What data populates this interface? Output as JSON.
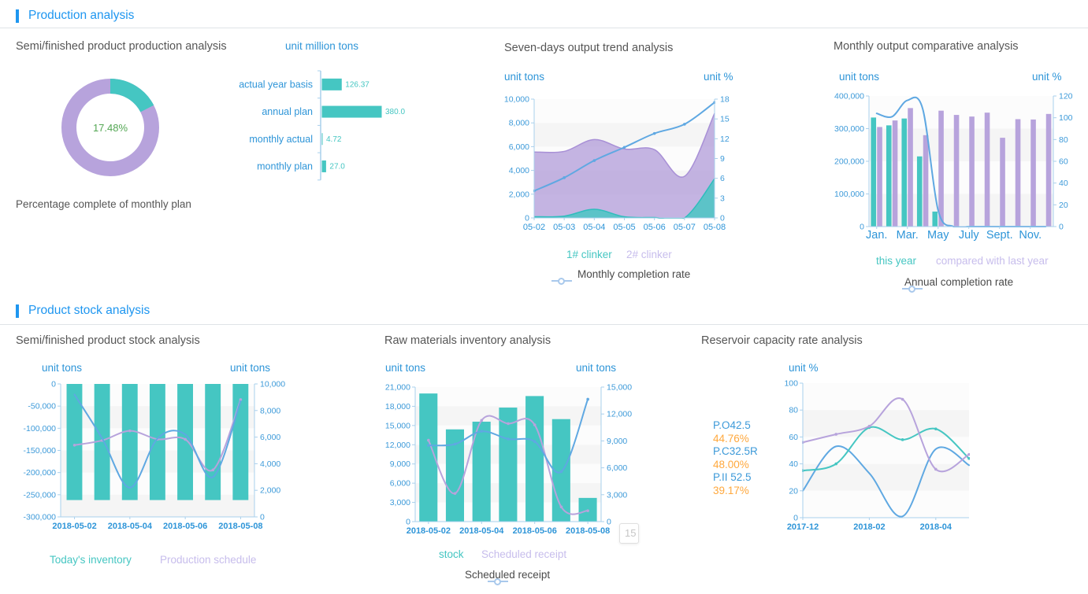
{
  "sections": {
    "production": {
      "title": "Production analysis"
    },
    "stock": {
      "title": "Product stock analysis"
    }
  },
  "panels": {
    "semi_production": {
      "title": "Semi/finished product production analysis",
      "unit": "unit million tons",
      "caption": "Percentage complete of monthly plan",
      "donut_center_label": "17.48%"
    },
    "seven_days": {
      "title": "Seven-days output trend analysis",
      "unit_left": "unit tons",
      "unit_right": "unit %",
      "legend": {
        "area1": "1# clinker",
        "area2": "2# clinker",
        "line": "Monthly completion rate"
      }
    },
    "monthly": {
      "title": "Monthly output comparative analysis",
      "unit_left": "unit tons",
      "unit_right": "unit %",
      "legend": {
        "bar1": "this year",
        "bar2": "compared with last year",
        "line": "Annual completion rate"
      }
    },
    "semi_stock": {
      "title": "Semi/finished product stock analysis",
      "unit_left": "unit tons",
      "unit_right": "unit tons",
      "legend": {
        "bar": "Today's inventory",
        "line": "Production schedule"
      }
    },
    "raw_materials": {
      "title": "Raw materials inventory analysis",
      "unit_left": "unit tons",
      "unit_right": "unit tons",
      "legend": {
        "bar": "stock",
        "line1": "Scheduled receipt",
        "line2": "Scheduled receipt"
      },
      "partial_tooltip": "15"
    },
    "reservoir": {
      "title": "Reservoir capacity rate analysis",
      "unit": "unit %",
      "annotations": [
        {
          "label": "P.O42.5",
          "value": "44.76%"
        },
        {
          "label": "P.C32.5R",
          "value": "48.00%"
        },
        {
          "label": "P.II 52.5",
          "value": "39.17%"
        }
      ]
    }
  },
  "chart_data": [
    {
      "id": "donut",
      "type": "pie",
      "title": "Percentage complete of monthly plan",
      "center_label": "17.48%",
      "slices": [
        {
          "name": "completed",
          "value": 17.48,
          "color": "#45c6c2"
        },
        {
          "name": "remaining",
          "value": 82.52,
          "color": "#b7a3dc"
        }
      ]
    },
    {
      "id": "hbar",
      "type": "bar",
      "orientation": "horizontal",
      "unit": "unit million tons",
      "categories": [
        "actual year basis",
        "annual plan",
        "monthly actual",
        "monthly plan"
      ],
      "values": [
        126.37,
        380.0,
        4.72,
        27.0
      ],
      "value_labels": [
        "126.37",
        "380.0",
        "4.72",
        "27.0"
      ],
      "xlim": [
        0,
        380
      ],
      "bar_color": "#45c6c2"
    },
    {
      "id": "seven_days",
      "type": "area",
      "title": "Seven-days output trend analysis",
      "x_labels": [
        "05-02",
        "05-03",
        "05-04",
        "05-05",
        "05-06",
        "05-07",
        "05-08"
      ],
      "x_mode": "edge",
      "left_axis": {
        "min": 0,
        "max": 10000,
        "ticks": [
          "0",
          "2,000",
          "4,000",
          "6,000",
          "8,000",
          "10,000"
        ],
        "label": "unit tons"
      },
      "right_axis": {
        "min": 0,
        "max": 18,
        "ticks": [
          "0",
          "3",
          "6",
          "9",
          "12",
          "15",
          "18"
        ],
        "label": "unit %"
      },
      "series": [
        {
          "name": "2# clinker",
          "kind": "area",
          "axis": "left",
          "color": "#a890d6",
          "fill": "#b7a3dc",
          "values": [
            5550,
            5600,
            6600,
            5800,
            5750,
            3500,
            8800
          ]
        },
        {
          "name": "1# clinker",
          "kind": "area",
          "axis": "left",
          "color": "#2fbdbd",
          "fill": "#45c6c2",
          "values": [
            100,
            150,
            730,
            100,
            30,
            0,
            3300
          ]
        },
        {
          "name": "Monthly completion rate",
          "kind": "line",
          "axis": "right",
          "color": "#5fa8e2",
          "values": [
            4.1,
            6.1,
            8.7,
            10.7,
            12.8,
            14.2,
            17.5
          ]
        }
      ]
    },
    {
      "id": "monthly",
      "type": "bar",
      "title": "Monthly output comparative analysis",
      "x_labels": [
        "Jan.",
        "",
        "Mar.",
        "",
        "May",
        "",
        "July",
        "",
        "Sept.",
        "",
        "Nov.",
        ""
      ],
      "x_mode": "band",
      "bar_frac": 0.8,
      "x_label_class": "big",
      "left_axis": {
        "min": 0,
        "max": 400000,
        "ticks": [
          "0",
          "100,000",
          "200,000",
          "300,000",
          "400,000"
        ],
        "label": "unit tons"
      },
      "right_axis": {
        "min": 0,
        "max": 120,
        "ticks": [
          "0",
          "20",
          "40",
          "60",
          "80",
          "100",
          "120"
        ],
        "label": "unit %"
      },
      "series": [
        {
          "name": "this year",
          "kind": "bar",
          "axis": "left",
          "color": "#45c6c2",
          "values": [
            334000,
            310000,
            331000,
            215000,
            46000,
            null,
            null,
            null,
            null,
            null,
            null,
            null
          ]
        },
        {
          "name": "compared with last year",
          "kind": "bar",
          "axis": "left",
          "color": "#b7a3dc",
          "values": [
            305000,
            325000,
            363000,
            280000,
            355000,
            342000,
            337000,
            349000,
            272000,
            329000,
            328000,
            345000
          ]
        },
        {
          "name": "Annual completion rate",
          "kind": "line",
          "axis": "right",
          "color": "#5fa8e2",
          "dots": false,
          "values": [
            104,
            101,
            116,
            108,
            15,
            0,
            0,
            0,
            0,
            0,
            0,
            0
          ]
        }
      ]
    },
    {
      "id": "stock",
      "type": "bar",
      "title": "Semi/finished product stock analysis",
      "x_labels": [
        "2018-05-02",
        "",
        "2018-05-04",
        "",
        "2018-05-06",
        "",
        "2018-05-08"
      ],
      "x_mode": "band",
      "bar_frac": 0.6,
      "x_label_class": "bold",
      "left_axis": {
        "min": -300000,
        "max": 0,
        "ticks": [
          "-300,000",
          "-250,000",
          "-200,000",
          "-150,000",
          "-100,000",
          "-50,000",
          "0"
        ],
        "label": "unit tons"
      },
      "right_axis": {
        "min": 0,
        "max": 10000,
        "ticks": [
          "0",
          "2,000",
          "4,000",
          "6,000",
          "8,000",
          "10,000"
        ],
        "label": "unit tons"
      },
      "series": [
        {
          "name": "Today's inventory",
          "kind": "bar",
          "axis": "left",
          "color": "#45c6c2",
          "values": [
            -262000,
            -262000,
            -262000,
            -262000,
            -262000,
            -262000,
            -262000
          ]
        },
        {
          "name": "Production schedule",
          "kind": "line",
          "axis": "right",
          "color": "#b7a3dc",
          "values": [
            5400,
            5750,
            6470,
            5840,
            5830,
            3530,
            8820
          ]
        },
        {
          "name": "",
          "kind": "line",
          "axis": "right",
          "color": "#5fa8e2",
          "dots": false,
          "values": [
            9200,
            5900,
            2200,
            5900,
            6200,
            3000,
            8700
          ]
        }
      ]
    },
    {
      "id": "raw",
      "type": "bar",
      "title": "Raw materials inventory analysis",
      "x_labels": [
        "2018-05-02",
        "",
        "2018-05-04",
        "",
        "2018-05-06",
        "",
        "2018-05-08"
      ],
      "x_mode": "band",
      "bar_frac": 0.72,
      "x_label_class": "bold",
      "left_axis": {
        "min": 0,
        "max": 21000,
        "ticks": [
          "0",
          "3,000",
          "6,000",
          "9,000",
          "12,000",
          "15,000",
          "18,000",
          "21,000"
        ],
        "label": "unit tons"
      },
      "right_axis": {
        "min": 0,
        "max": 15000,
        "ticks": [
          "0",
          "3,000",
          "6,000",
          "9,000",
          "12,000",
          "15,000"
        ],
        "label": "unit tons"
      },
      "series": [
        {
          "name": "stock",
          "kind": "bar",
          "axis": "left",
          "color": "#45c6c2",
          "values": [
            20000,
            14400,
            15600,
            17800,
            19600,
            16000,
            3700
          ]
        },
        {
          "name": "Scheduled receipt",
          "kind": "line",
          "axis": "left",
          "color": "#b7a3dc",
          "values": [
            12700,
            4400,
            15800,
            15300,
            15100,
            2300,
            1700
          ]
        },
        {
          "name": "Scheduled receipt",
          "kind": "line",
          "axis": "left",
          "color": "#5fa8e2",
          "values": [
            11900,
            12100,
            14100,
            12900,
            12500,
            7800,
            19100
          ]
        }
      ]
    },
    {
      "id": "reservoir",
      "type": "line",
      "title": "Reservoir capacity rate analysis",
      "x_labels": [
        "2017-12",
        "",
        "2018-02",
        "",
        "2018-04",
        ""
      ],
      "x_mode": "edge",
      "x_label_class": "bold",
      "left_axis": {
        "min": 0,
        "max": 100,
        "ticks": [
          "0",
          "20",
          "40",
          "60",
          "80",
          "100"
        ],
        "label": "unit %"
      },
      "series": [
        {
          "name": "P.O42.5",
          "kind": "line",
          "axis": "left",
          "color": "#5fa8e2",
          "dots": false,
          "values": [
            20,
            53,
            33,
            1,
            51,
            39
          ]
        },
        {
          "name": "P.C32.5R",
          "kind": "line",
          "axis": "left",
          "color": "#45c6c2",
          "values": [
            35,
            40,
            67,
            58,
            66,
            44
          ]
        },
        {
          "name": "P.II 52.5",
          "kind": "line",
          "axis": "left",
          "color": "#b7a3dc",
          "values": [
            56,
            62,
            68,
            88,
            36,
            47
          ]
        }
      ]
    }
  ]
}
